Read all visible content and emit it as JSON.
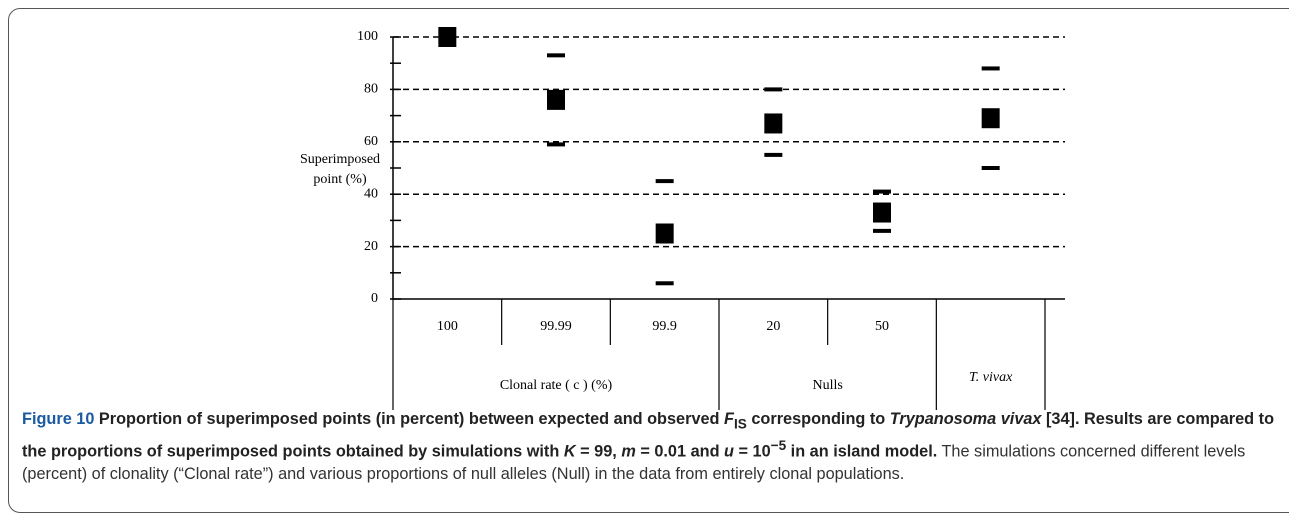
{
  "chart_data": {
    "type": "range",
    "y_label_lines": [
      "Superimposed",
      "point (%)"
    ],
    "categories": [
      "100",
      "99.99",
      "99.9",
      "20",
      "50",
      null
    ],
    "groups": [
      {
        "label": "Clonal rate ( c ) (%)",
        "span": 3
      },
      {
        "label": "Nulls",
        "span": 2
      },
      {
        "label": "T. vivax",
        "span": 1
      }
    ],
    "values": [
      100,
      76,
      25,
      67,
      33,
      69
    ],
    "upper": [
      null,
      93,
      45,
      80,
      41,
      88
    ],
    "lower": [
      null,
      59,
      6,
      55,
      26,
      50
    ],
    "color": "#000000",
    "ylim": [
      0,
      100
    ],
    "yticks": [
      0,
      20,
      40,
      60,
      80,
      100
    ],
    "yminorticks": [
      10,
      30,
      50,
      70,
      90
    ],
    "grid": true
  },
  "caption": {
    "runs": [
      "Figure 10",
      " Proportion of superimposed points (in percent) between expected and observed ",
      "F",
      "IS",
      " corresponding to ",
      "Trypanosoma vivax",
      " [34]. Results are compared to the proportions of superimposed points obtained by simulations with ",
      "K",
      " = 99, ",
      "m",
      " = 0.01 and ",
      "u",
      " = 10",
      "−5",
      " in an island model.",
      " The simulations concerned different levels (percent) of clonality (“Clonal rate”) and various proportions of null alleles (Null) in the data from entirely clonal populations."
    ]
  }
}
